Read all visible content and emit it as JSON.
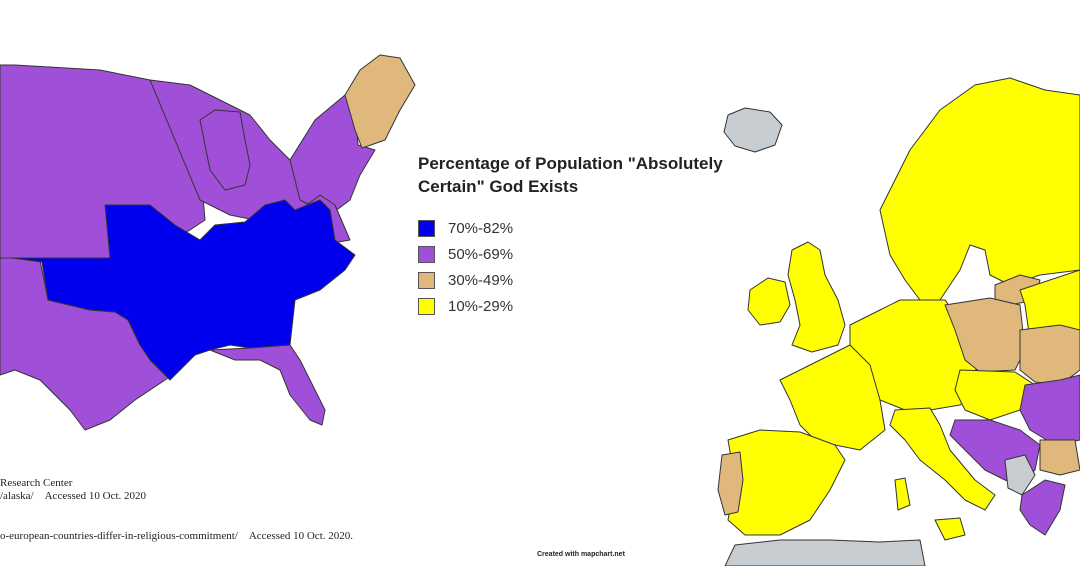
{
  "legend": {
    "title_line1": "Percentage of Population \"Absolutely",
    "title_line2": "Certain\" God Exists",
    "items": [
      {
        "label": "70%-82%",
        "color": "#0000ee"
      },
      {
        "label": "50%-69%",
        "color": "#a050d8"
      },
      {
        "label": "30%-49%",
        "color": "#e0b87c"
      },
      {
        "label": "10%-29%",
        "color": "#ffff00"
      }
    ]
  },
  "nodata_color": "#c8cdd2",
  "sources": {
    "line1": "Research Center",
    "line2_prefix": "/alaska/",
    "line2_accessed": "Accessed 10 Oct. 2020",
    "line3_prefix": "o-european-countries-differ-in-religious-commitment/",
    "line3_accessed": "Accessed 10 Oct. 2020."
  },
  "credit": "Created with mapchart.net"
}
